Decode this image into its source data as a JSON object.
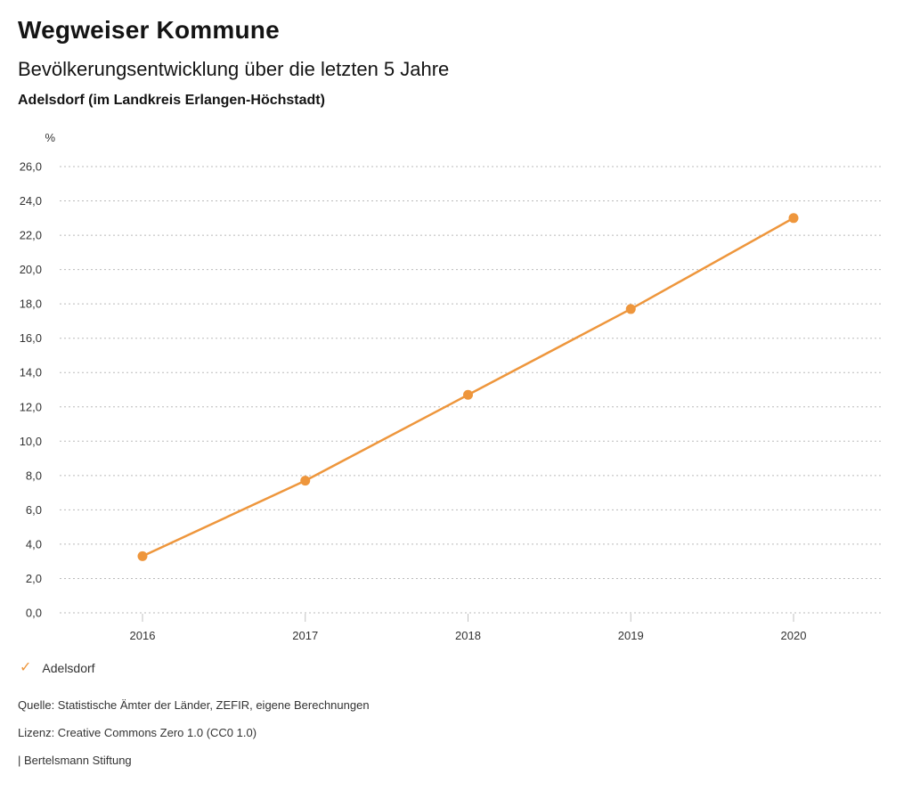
{
  "header": {
    "app_title": "Wegweiser Kommune"
  },
  "chart_data": {
    "type": "line",
    "title": "Bevölkerungsentwicklung über die letzten 5 Jahre",
    "subtitle": "Adelsdorf (im Landkreis Erlangen-Höchstadt)",
    "unit_label": "%",
    "categories": [
      "2016",
      "2017",
      "2018",
      "2019",
      "2020"
    ],
    "series": [
      {
        "name": "Adelsdorf",
        "values": [
          3.3,
          7.7,
          12.7,
          17.7,
          23.0
        ],
        "color": "#EE963C"
      }
    ],
    "ylim": [
      0,
      26
    ],
    "y_ticks": [
      0,
      2,
      4,
      6,
      8,
      10,
      12,
      14,
      16,
      18,
      20,
      22,
      24,
      26
    ],
    "y_tick_labels": [
      "0,0",
      "2,0",
      "4,0",
      "6,0",
      "8,0",
      "10,0",
      "12,0",
      "14,0",
      "16,0",
      "18,0",
      "20,0",
      "22,0",
      "24,0",
      "26,0"
    ],
    "grid": "horizontal-dotted",
    "legend_position": "bottom-left"
  },
  "legend": {
    "items": [
      {
        "icon": "✓",
        "label": "Adelsdorf"
      }
    ]
  },
  "footer": {
    "source": "Quelle: Statistische Ämter der Länder, ZEFIR, eigene Berechnungen",
    "license": "Lizenz: Creative Commons Zero 1.0 (CC0 1.0)",
    "attribution": "| Bertelsmann Stiftung"
  },
  "colors": {
    "accent": "#EE963C",
    "grid": "#BBBBBB",
    "tick": "#C2C2C2",
    "axis_text": "#333333",
    "heading_text": "#141414"
  }
}
